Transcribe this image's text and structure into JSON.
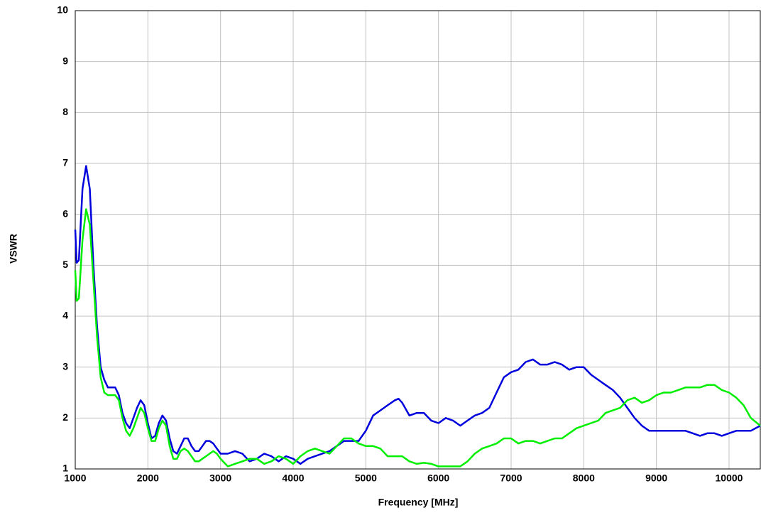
{
  "chart_data": {
    "type": "line",
    "xlabel": "Frequency [MHz]",
    "ylabel": "VSWR",
    "x": [
      1000,
      1020,
      1050,
      1100,
      1150,
      1200,
      1250,
      1300,
      1350,
      1400,
      1450,
      1500,
      1550,
      1600,
      1650,
      1700,
      1750,
      1800,
      1850,
      1900,
      1950,
      2000,
      2050,
      2100,
      2150,
      2200,
      2250,
      2300,
      2350,
      2400,
      2450,
      2500,
      2550,
      2600,
      2650,
      2700,
      2750,
      2800,
      2850,
      2900,
      2950,
      3000,
      3100,
      3200,
      3300,
      3400,
      3500,
      3600,
      3700,
      3800,
      3900,
      4000,
      4100,
      4200,
      4300,
      4400,
      4500,
      4600,
      4700,
      4800,
      4900,
      5000,
      5100,
      5200,
      5300,
      5400,
      5450,
      5500,
      5600,
      5700,
      5800,
      5900,
      6000,
      6100,
      6200,
      6300,
      6400,
      6500,
      6600,
      6700,
      6800,
      6900,
      7000,
      7100,
      7200,
      7300,
      7400,
      7500,
      7600,
      7700,
      7800,
      7900,
      8000,
      8100,
      8200,
      8300,
      8400,
      8500,
      8600,
      8700,
      8800,
      8900,
      9000,
      9100,
      9200,
      9300,
      9400,
      9500,
      9600,
      9700,
      9800,
      9900,
      10000,
      10100,
      10200,
      10300,
      10430
    ],
    "series": [
      {
        "color": "#0000dd",
        "values": [
          5.7,
          5.05,
          5.1,
          6.5,
          6.95,
          6.5,
          5.0,
          3.8,
          3.0,
          2.75,
          2.6,
          2.6,
          2.6,
          2.45,
          2.1,
          1.9,
          1.8,
          2.0,
          2.2,
          2.35,
          2.25,
          1.9,
          1.6,
          1.65,
          1.9,
          2.05,
          1.95,
          1.6,
          1.35,
          1.3,
          1.45,
          1.6,
          1.6,
          1.45,
          1.35,
          1.35,
          1.45,
          1.55,
          1.55,
          1.5,
          1.4,
          1.3,
          1.3,
          1.35,
          1.3,
          1.15,
          1.2,
          1.3,
          1.25,
          1.15,
          1.25,
          1.2,
          1.1,
          1.2,
          1.25,
          1.3,
          1.35,
          1.45,
          1.55,
          1.55,
          1.55,
          1.75,
          2.05,
          2.15,
          2.25,
          2.35,
          2.38,
          2.3,
          2.05,
          2.1,
          2.1,
          1.95,
          1.9,
          2.0,
          1.95,
          1.85,
          1.95,
          2.05,
          2.1,
          2.2,
          2.5,
          2.8,
          2.9,
          2.95,
          3.1,
          3.15,
          3.05,
          3.05,
          3.1,
          3.05,
          2.95,
          3.0,
          3.0,
          2.85,
          2.75,
          2.65,
          2.55,
          2.4,
          2.2,
          2.0,
          1.85,
          1.75,
          1.75,
          1.75,
          1.75,
          1.75,
          1.75,
          1.7,
          1.65,
          1.7,
          1.7,
          1.65,
          1.7,
          1.75,
          1.75,
          1.75,
          1.85
        ]
      },
      {
        "color": "#00ee00",
        "values": [
          4.9,
          4.3,
          4.35,
          5.5,
          6.1,
          5.8,
          4.7,
          3.6,
          2.8,
          2.5,
          2.45,
          2.45,
          2.45,
          2.35,
          2.0,
          1.75,
          1.65,
          1.8,
          2.0,
          2.2,
          2.1,
          1.8,
          1.55,
          1.55,
          1.8,
          1.95,
          1.85,
          1.45,
          1.2,
          1.2,
          1.35,
          1.4,
          1.35,
          1.25,
          1.15,
          1.15,
          1.2,
          1.25,
          1.3,
          1.35,
          1.3,
          1.2,
          1.05,
          1.1,
          1.15,
          1.2,
          1.2,
          1.1,
          1.15,
          1.25,
          1.2,
          1.1,
          1.25,
          1.35,
          1.4,
          1.35,
          1.3,
          1.45,
          1.6,
          1.6,
          1.5,
          1.45,
          1.45,
          1.4,
          1.25,
          1.25,
          1.25,
          1.25,
          1.15,
          1.1,
          1.12,
          1.1,
          1.05,
          1.05,
          1.05,
          1.05,
          1.15,
          1.3,
          1.4,
          1.45,
          1.5,
          1.6,
          1.6,
          1.5,
          1.55,
          1.55,
          1.5,
          1.55,
          1.6,
          1.6,
          1.7,
          1.8,
          1.85,
          1.9,
          1.95,
          2.1,
          2.15,
          2.2,
          2.35,
          2.4,
          2.3,
          2.35,
          2.45,
          2.5,
          2.5,
          2.55,
          2.6,
          2.6,
          2.6,
          2.65,
          2.65,
          2.55,
          2.5,
          2.4,
          2.25,
          2.0,
          1.85
        ]
      }
    ],
    "xlim": [
      1000,
      10430
    ],
    "ylim": [
      1,
      10
    ],
    "xticks": [
      1000,
      2000,
      3000,
      4000,
      5000,
      6000,
      7000,
      8000,
      9000,
      10000
    ],
    "yticks": [
      1,
      2,
      3,
      4,
      5,
      6,
      7,
      8,
      9,
      10
    ],
    "grid": true
  }
}
